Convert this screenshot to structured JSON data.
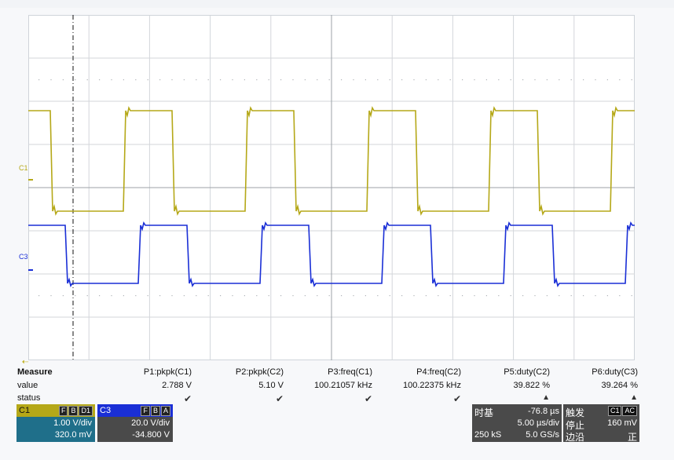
{
  "channels": {
    "c1": {
      "marker": "C1",
      "color": "#b5a818"
    },
    "c3": {
      "marker": "C3",
      "color": "#1a2fd6"
    }
  },
  "measure": {
    "title": "Measure",
    "row_value_label": "value",
    "row_status_label": "status",
    "items": [
      {
        "name": "P1:pkpk(C1)",
        "value": "2.788 V",
        "status": "check"
      },
      {
        "name": "P2:pkpk(C2)",
        "value": "5.10 V",
        "status": "check"
      },
      {
        "name": "P3:freq(C1)",
        "value": "100.21057 kHz",
        "status": "check"
      },
      {
        "name": "P4:freq(C2)",
        "value": "100.22375 kHz",
        "status": "check"
      },
      {
        "name": "P5:duty(C2)",
        "value": "39.822 %",
        "status": "warning"
      },
      {
        "name": "P6:duty(C3)",
        "value": "39.264 %",
        "status": "warning"
      }
    ]
  },
  "c1_panel": {
    "name": "C1",
    "tags": [
      "F",
      "B",
      "D1"
    ],
    "vdiv": "1.00 V/div",
    "offset": "320.0 mV",
    "color": "#b5a818"
  },
  "c3_panel": {
    "name": "C3",
    "tags": [
      "F",
      "B",
      "A"
    ],
    "vdiv": "20.0 V/div",
    "offset": "-34.800 V",
    "color": "#1a2fd6"
  },
  "timebase": {
    "label": "时基",
    "delay": "-76.8 µs",
    "tdiv": "5.00 µs/div",
    "samples": "250 kS",
    "rate": "5.0 GS/s"
  },
  "trigger": {
    "label": "触发",
    "source": "C1",
    "coupling": "AC",
    "mode": "停止",
    "level": "160 mV",
    "type_label": "边沿",
    "slope": "正"
  }
}
